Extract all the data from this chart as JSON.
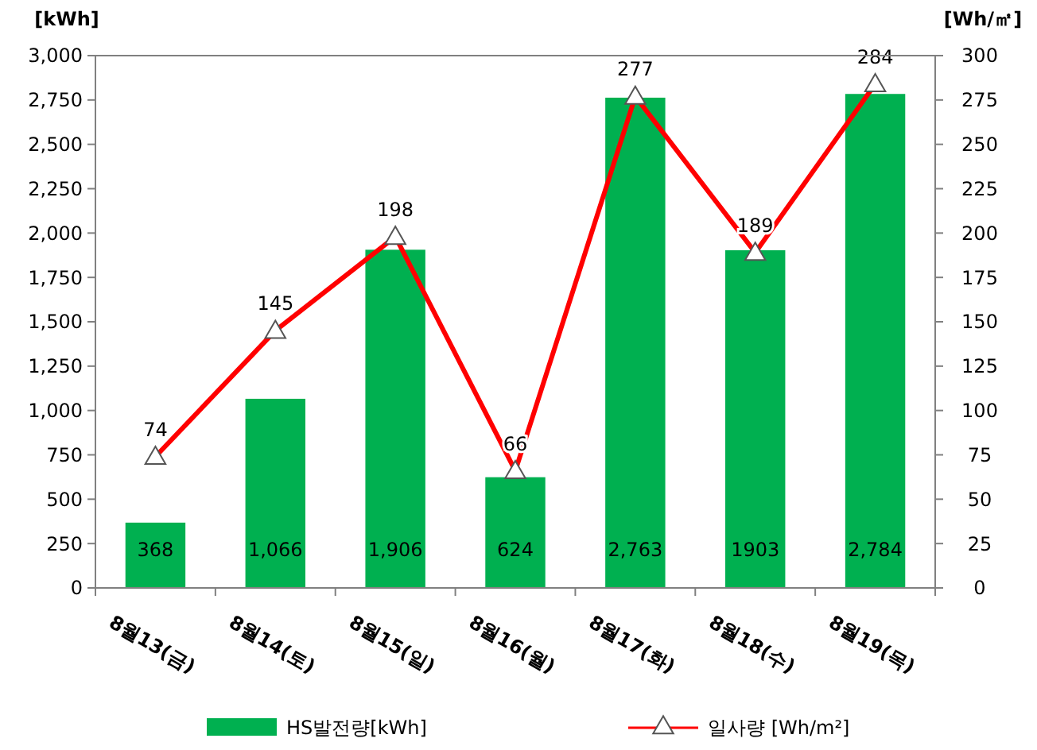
{
  "chart_data": {
    "type": "bar",
    "ylabel": "[kWh]",
    "y2label": "[Wh/㎡]",
    "categories": [
      "8월13(금)",
      "8월14(토)",
      "8월15(일)",
      "8월16(월)",
      "8월17(화)",
      "8월18(수)",
      "8월19(목)"
    ],
    "series": [
      {
        "name": "HS발전량[kWh]",
        "color": "#00b050",
        "values": [
          368,
          1066,
          1906,
          624,
          2763,
          1903,
          2784
        ],
        "value_labels": [
          "368",
          "1,066",
          "1,906",
          "624",
          "2,763",
          "1903",
          "2,784"
        ]
      },
      {
        "name": "일사량 [Wh/m²]",
        "type": "line",
        "axis": "y2",
        "color": "#ff0000",
        "marker": "triangle",
        "values": [
          74,
          145,
          198,
          66,
          277,
          189,
          284
        ],
        "value_labels": [
          "74",
          "145",
          "198",
          "66",
          "277",
          "189",
          "284"
        ]
      }
    ],
    "ylim": [
      0,
      3000
    ],
    "yticks": [
      {
        "value": 0,
        "label": "0"
      },
      {
        "value": 250,
        "label": "250"
      },
      {
        "value": 500,
        "label": "500"
      },
      {
        "value": 750,
        "label": "750"
      },
      {
        "value": 1000,
        "label": "1,000"
      },
      {
        "value": 1250,
        "label": "1,250"
      },
      {
        "value": 1500,
        "label": "1,500"
      },
      {
        "value": 1750,
        "label": "1,750"
      },
      {
        "value": 2000,
        "label": "2,000"
      },
      {
        "value": 2250,
        "label": "2,250"
      },
      {
        "value": 2500,
        "label": "2,500"
      },
      {
        "value": 2750,
        "label": "2,750"
      },
      {
        "value": 3000,
        "label": "3,000"
      }
    ],
    "y2lim": [
      0,
      300
    ],
    "y2ticks": [
      0,
      25,
      50,
      75,
      100,
      125,
      150,
      175,
      200,
      225,
      250,
      275,
      300
    ],
    "legend": "bottom",
    "grid": false
  }
}
